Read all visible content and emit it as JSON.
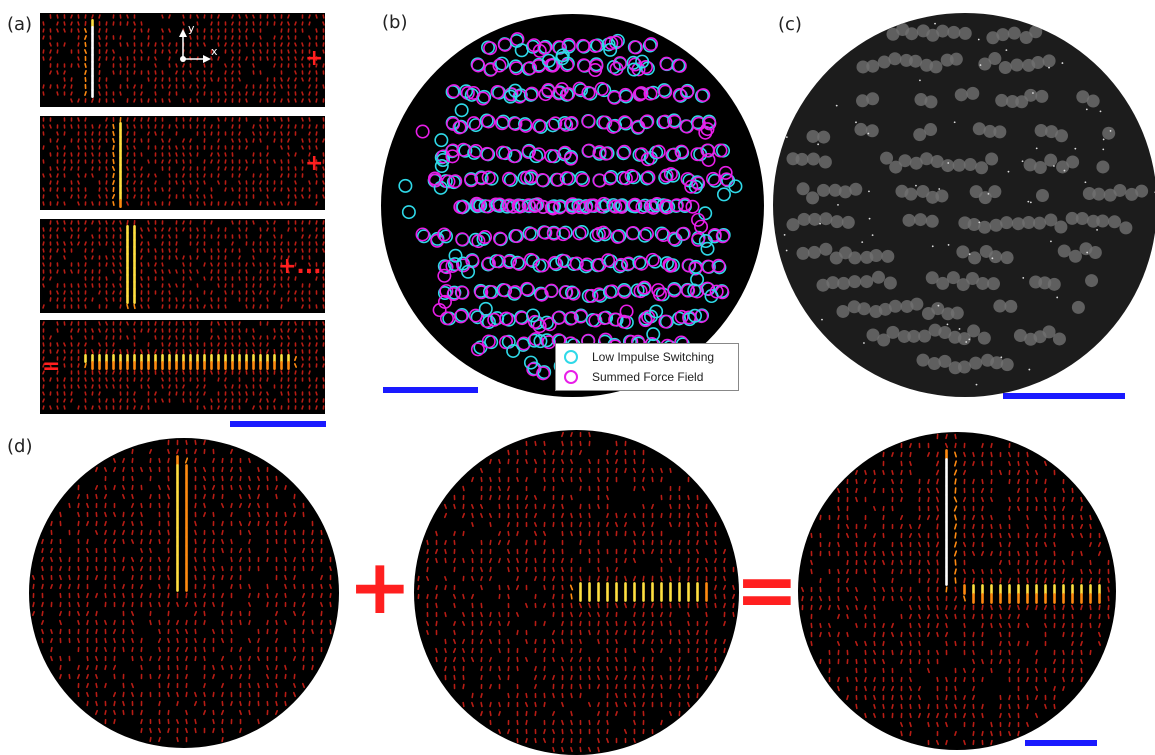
{
  "labels": {
    "a": "(a)",
    "b": "(b)",
    "c": "(c)",
    "d": "(d)"
  },
  "axes": {
    "x": "x",
    "y": "y"
  },
  "operators": {
    "plus": "+",
    "plus_more": "+...",
    "equals": "="
  },
  "legend": {
    "series1": "Low Impulse Switching",
    "series2": "Summed Force Field"
  },
  "colors": {
    "background": "#000000",
    "scalebar": "#1a1aff",
    "operator": "#ff1f1f",
    "cyan": "#2fd9e8",
    "magenta": "#e81ee8",
    "field_low": "#b81c14",
    "field_mid": "#ff8a10",
    "field_high": "#ffe040",
    "field_peak": "#ffffff"
  }
}
